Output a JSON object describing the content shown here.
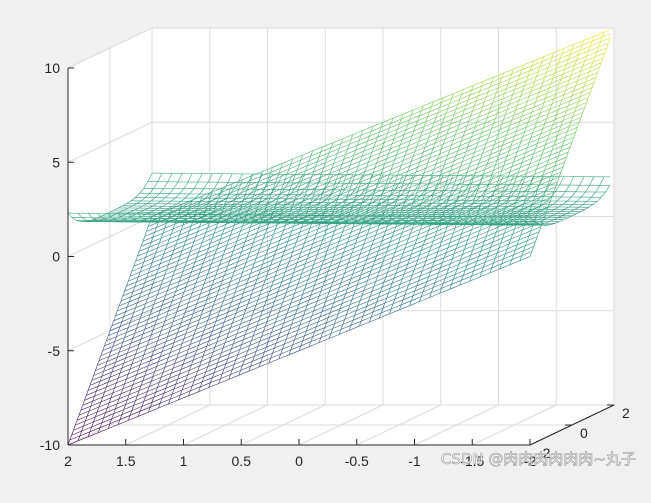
{
  "colors": {
    "figure_background": "#f0f0f0",
    "axes_background": "#ffffff",
    "grid": "#dcdcdc",
    "axis_line": "#262626",
    "colormap": [
      "#440154",
      "#3b528b",
      "#21918c",
      "#5ec962",
      "#fde725"
    ]
  },
  "chart_data": {
    "type": "surface-mesh-3d",
    "colormap": "parula",
    "grid": true,
    "x_ticks": [
      "2",
      "1.5",
      "1",
      "0.5",
      "0",
      "-0.5",
      "-1",
      "-1.5",
      "-2"
    ],
    "y_ticks": [
      "2",
      "0",
      "-2"
    ],
    "z_ticks": [
      "10",
      "5",
      "0",
      "-5",
      "-10"
    ],
    "xlim": [
      -2,
      2
    ],
    "ylim": [
      -2,
      2
    ],
    "zlim": [
      -10,
      10
    ],
    "surfaces": [
      {
        "kind": "plane",
        "z_range": [
          -10,
          10
        ]
      },
      {
        "kind": "trough",
        "z_range": [
          1,
          4
        ]
      }
    ]
  },
  "watermark": "CSDN @肉肉肉肉肉肉~丸子"
}
